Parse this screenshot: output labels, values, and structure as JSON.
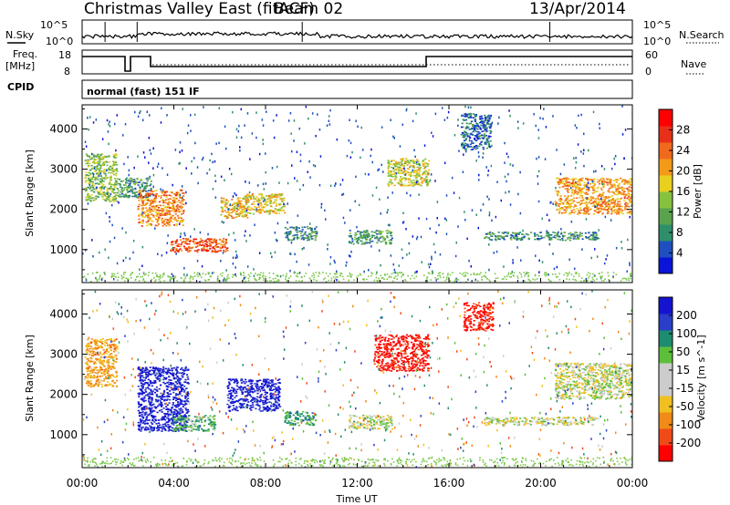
{
  "header": {
    "station": "Christmas Valley East (fitACF)",
    "beam": "Beam 02",
    "date": "13/Apr/2014"
  },
  "panels": {
    "nsky_label": "N.Sky",
    "nsearch_label": "N.Search",
    "freq_label": "Freq.",
    "freq_unit": "[MHz]",
    "nave_label": "Nave",
    "cpid_label": "CPID",
    "cpid_text": "normal (fast) 151 IF",
    "noise_ticks_left": [
      "10^5",
      "10^0"
    ],
    "noise_ticks_right": [
      "10^5",
      "10^0"
    ],
    "freq_ticks": [
      "18",
      "8"
    ],
    "nave_ticks": [
      "60",
      "0"
    ]
  },
  "colors": {
    "power": [
      "#0a14d8",
      "#1f4fbf",
      "#2e8f6a",
      "#5aa34e",
      "#86c23e",
      "#e8d020",
      "#f39a18",
      "#f06a1e",
      "#e83018",
      "#ff0000"
    ],
    "velocity": [
      "#1414d0",
      "#2a3fc8",
      "#1e8c70",
      "#5cbf3a",
      "#cccccc",
      "#cccccc",
      "#f0c020",
      "#f08a18",
      "#f04a18",
      "#ff0000"
    ],
    "ground": "#7cc84a"
  },
  "chart_data": [
    {
      "type": "heatmap",
      "ylabel": "Slant Range [km]",
      "xlabel": "Time UT",
      "xlim": [
        "00:00",
        "00:00"
      ],
      "ylim": [
        180,
        4600
      ],
      "x_ticks": [
        "00:00",
        "04:00",
        "08:00",
        "12:00",
        "16:00",
        "20:00",
        "00:00"
      ],
      "y_ticks": [
        1000,
        2000,
        3000,
        4000
      ],
      "colorbar": {
        "label": "Power [dB]",
        "ticks": [
          4,
          8,
          12,
          16,
          20,
          24,
          28
        ]
      },
      "patches": [
        {
          "t": [
            0.1,
            1.5
          ],
          "r": [
            2200,
            3400
          ],
          "v": 14
        },
        {
          "t": [
            1.5,
            3.0
          ],
          "r": [
            2300,
            2800
          ],
          "v": 10
        },
        {
          "t": [
            2.4,
            4.4
          ],
          "r": [
            1600,
            2500
          ],
          "v": 22
        },
        {
          "t": [
            3.8,
            6.3
          ],
          "r": [
            950,
            1300
          ],
          "v": 25
        },
        {
          "t": [
            6.0,
            7.2
          ],
          "r": [
            1800,
            2300
          ],
          "v": 19
        },
        {
          "t": [
            7.0,
            8.8
          ],
          "r": [
            1900,
            2400
          ],
          "v": 18
        },
        {
          "t": [
            8.8,
            10.2
          ],
          "r": [
            1250,
            1600
          ],
          "v": 9
        },
        {
          "t": [
            11.6,
            13.5
          ],
          "r": [
            1150,
            1500
          ],
          "v": 10
        },
        {
          "t": [
            13.3,
            15.1
          ],
          "r": [
            2600,
            3300
          ],
          "v": 17
        },
        {
          "t": [
            16.5,
            17.8
          ],
          "r": [
            3500,
            4400
          ],
          "v": 6
        },
        {
          "t": [
            17.5,
            22.5
          ],
          "r": [
            1250,
            1450
          ],
          "v": 9
        },
        {
          "t": [
            20.6,
            24.0
          ],
          "r": [
            1900,
            2800
          ],
          "v": 21
        }
      ]
    },
    {
      "type": "heatmap",
      "ylabel": "Slant Range [km]",
      "xlabel": "Time UT",
      "xlim": [
        "00:00",
        "00:00"
      ],
      "ylim": [
        180,
        4600
      ],
      "x_ticks": [
        "00:00",
        "04:00",
        "08:00",
        "12:00",
        "16:00",
        "20:00",
        "00:00"
      ],
      "y_ticks": [
        1000,
        2000,
        3000,
        4000
      ],
      "colorbar": {
        "label": "Velocity [m s^-1]",
        "ticks": [
          200,
          100,
          50,
          15,
          -15,
          -50,
          -100,
          -200
        ]
      },
      "patches": [
        {
          "t": [
            0.1,
            1.5
          ],
          "r": [
            2200,
            3400
          ],
          "v": -60
        },
        {
          "t": [
            2.4,
            4.6
          ],
          "r": [
            1100,
            2700
          ],
          "v": 220
        },
        {
          "t": [
            3.9,
            5.8
          ],
          "r": [
            1100,
            1500
          ],
          "v": 40
        },
        {
          "t": [
            6.3,
            8.6
          ],
          "r": [
            1600,
            2400
          ],
          "v": 220
        },
        {
          "t": [
            8.8,
            10.2
          ],
          "r": [
            1250,
            1600
          ],
          "v": 60
        },
        {
          "t": [
            11.6,
            13.5
          ],
          "r": [
            1150,
            1500
          ],
          "v": 10
        },
        {
          "t": [
            12.7,
            15.1
          ],
          "r": [
            2600,
            3500
          ],
          "v": -220
        },
        {
          "t": [
            16.6,
            17.9
          ],
          "r": [
            3600,
            4300
          ],
          "v": -220
        },
        {
          "t": [
            17.5,
            22.5
          ],
          "r": [
            1250,
            1450
          ],
          "v": 0
        },
        {
          "t": [
            20.6,
            24.0
          ],
          "r": [
            1900,
            2800
          ],
          "v": 0
        }
      ]
    }
  ]
}
